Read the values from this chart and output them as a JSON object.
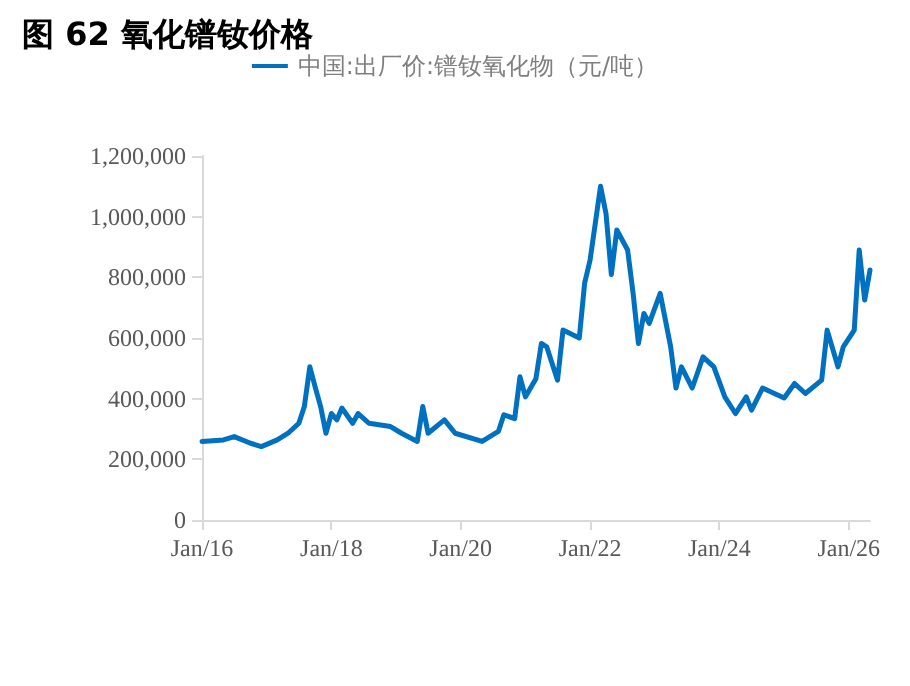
{
  "chart_data": {
    "type": "line",
    "title": "图 62 氧化镨钕价格",
    "x": [
      "2016-01",
      "2016-05",
      "2016-07",
      "2016-10",
      "2016-12",
      "2017-03",
      "2017-05",
      "2017-07",
      "2017-08",
      "2017-09",
      "2017-10",
      "2017-11",
      "2017-12",
      "2018-01",
      "2018-02",
      "2018-03",
      "2018-05",
      "2018-06",
      "2018-08",
      "2018-12",
      "2019-02",
      "2019-05",
      "2019-06",
      "2019-07",
      "2019-10",
      "2019-12",
      "2020-05",
      "2020-08",
      "2020-09",
      "2020-11",
      "2020-12",
      "2021-01",
      "2021-03",
      "2021-04",
      "2021-05",
      "2021-07",
      "2021-08",
      "2021-11",
      "2021-12",
      "2022-01",
      "2022-03",
      "2022-04",
      "2022-05",
      "2022-06",
      "2022-08",
      "2022-09",
      "2022-10",
      "2022-11",
      "2022-12",
      "2023-02",
      "2023-04",
      "2023-05",
      "2023-06",
      "2023-08",
      "2023-10",
      "2023-12",
      "2024-02",
      "2024-04",
      "2024-06",
      "2024-07",
      "2024-09",
      "2025-01",
      "2025-03",
      "2025-05",
      "2025-08",
      "2025-09",
      "2025-11",
      "2025-12",
      "2026-02",
      "2026-03",
      "2026-04",
      "2026-05"
    ],
    "series": [
      {
        "name": "中国:出厂价:镨钕氧化物（元/吨）",
        "color": "#0070c0",
        "values": [
          259000,
          264000,
          275000,
          253000,
          242000,
          264000,
          286000,
          319000,
          374000,
          505000,
          439000,
          374000,
          286000,
          351000,
          330000,
          369000,
          319000,
          351000,
          319000,
          308000,
          286000,
          259000,
          374000,
          286000,
          330000,
          286000,
          259000,
          292000,
          347000,
          334000,
          472000,
          406000,
          466000,
          582000,
          571000,
          461000,
          626000,
          600000,
          780000,
          857000,
          1100000,
          1010000,
          809000,
          956000,
          890000,
          747000,
          582000,
          681000,
          648000,
          747000,
          571000,
          435000,
          505000,
          435000,
          538000,
          505000,
          406000,
          351000,
          406000,
          362000,
          435000,
          402000,
          450000,
          417000,
          461000,
          626000,
          505000,
          571000,
          626000,
          890000,
          725000,
          824000
        ]
      }
    ],
    "xlim": [
      "2016-01",
      "2026-05"
    ],
    "xticks": [
      {
        "value": "2016-01",
        "label": "Jan/16"
      },
      {
        "value": "2018-01",
        "label": "Jan/18"
      },
      {
        "value": "2020-01",
        "label": "Jan/20"
      },
      {
        "value": "2022-01",
        "label": "Jan/22"
      },
      {
        "value": "2024-01",
        "label": "Jan/24"
      },
      {
        "value": "2026-01",
        "label": "Jan/26"
      }
    ],
    "ylim": [
      0,
      1200000
    ],
    "yticks": [
      {
        "value": 0,
        "label": "0"
      },
      {
        "value": 200000,
        "label": "200,000"
      },
      {
        "value": 400000,
        "label": "400,000"
      },
      {
        "value": 600000,
        "label": "600,000"
      },
      {
        "value": 800000,
        "label": "800,000"
      },
      {
        "value": 1000000,
        "label": "1,000,000"
      },
      {
        "value": 1200000,
        "label": "1,200,000"
      }
    ],
    "legend": "top",
    "grid": false,
    "marker": "none",
    "line_style": "solid"
  }
}
